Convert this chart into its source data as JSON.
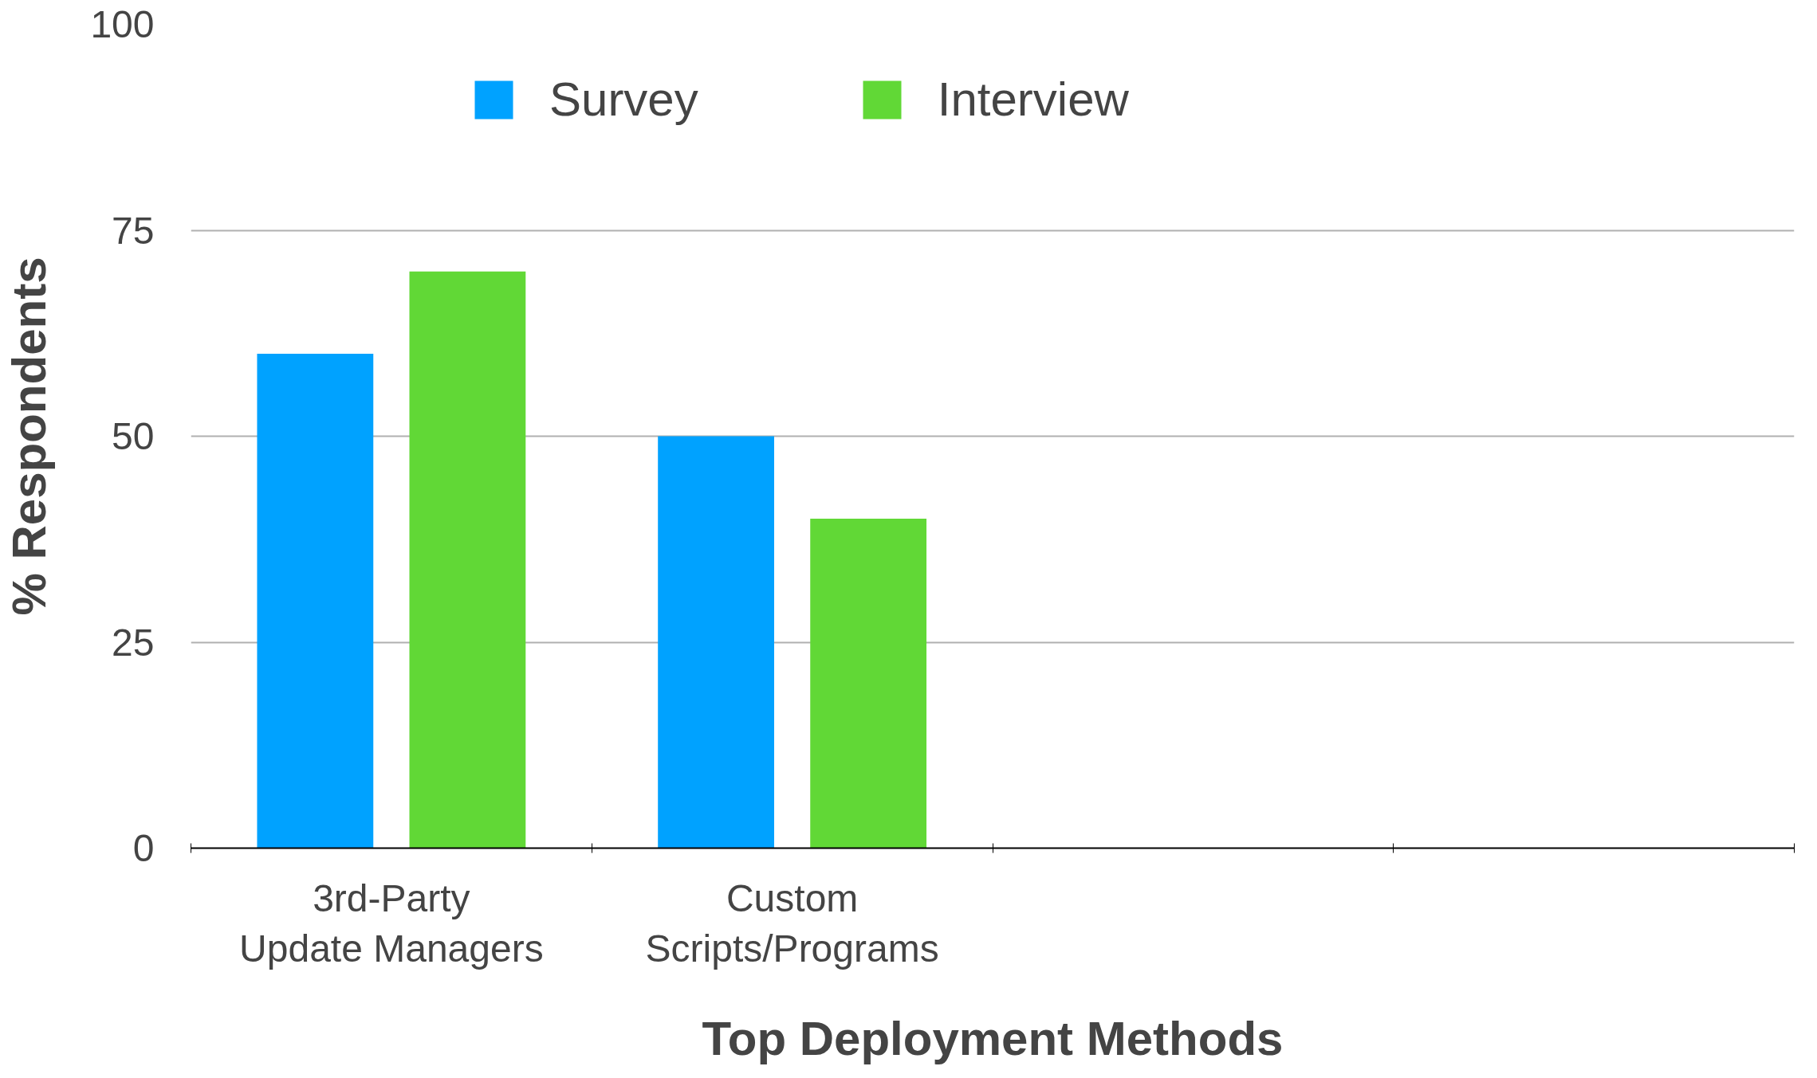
{
  "chart_data": {
    "type": "bar",
    "xlabel": "Top Deployment Methods",
    "ylabel": "% Respondents",
    "categories": [
      "3rd-Party\nUpdate Managers",
      "Custom\nScripts/Programs",
      null,
      null
    ],
    "series": [
      {
        "name": "Survey",
        "color": "#00a2ff",
        "values": [
          60,
          50,
          null,
          null
        ]
      },
      {
        "name": "Interview",
        "color": "#61d836",
        "values": [
          70,
          40,
          null,
          null
        ]
      }
    ],
    "ylim": [
      0,
      100
    ],
    "yticks": [
      0,
      25,
      50,
      75,
      100
    ],
    "grid": "y",
    "legend": "top"
  }
}
